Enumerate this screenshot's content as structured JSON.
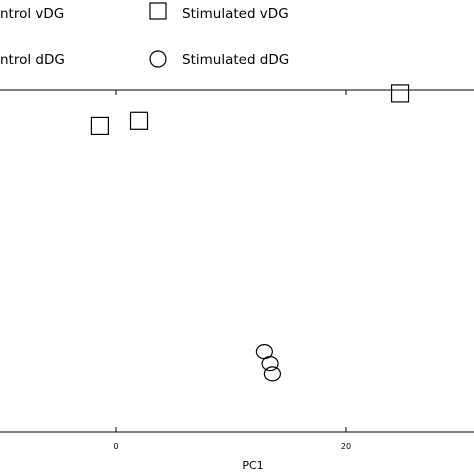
{
  "chart_data": {
    "type": "scatter",
    "title": "",
    "xlabel": "PC1",
    "ylabel": "",
    "xlim": [
      -10,
      30
    ],
    "ylim": [
      -10,
      10
    ],
    "x_ticks": [
      0,
      20
    ],
    "x_tick_labels": [
      "0",
      "20"
    ],
    "grid": false,
    "legend": {
      "placement": "top",
      "entries": [
        {
          "label": "ntrol vDG",
          "marker": "none"
        },
        {
          "label": "Stimulated vDG",
          "marker": "square"
        },
        {
          "label": "ntrol dDG",
          "marker": "none"
        },
        {
          "label": "Stimulated dDG",
          "marker": "circle"
        }
      ]
    },
    "series": [
      {
        "marker": "square",
        "points": [
          {
            "x": -1.4,
            "y": 7.9
          },
          {
            "x": 2.0,
            "y": 8.2
          },
          {
            "x": 24.7,
            "y": 9.8
          }
        ]
      },
      {
        "marker": "circle",
        "points": [
          {
            "x": 12.9,
            "y": -5.3
          },
          {
            "x": 13.4,
            "y": -6.0
          },
          {
            "x": 13.6,
            "y": -6.6
          }
        ]
      }
    ]
  }
}
